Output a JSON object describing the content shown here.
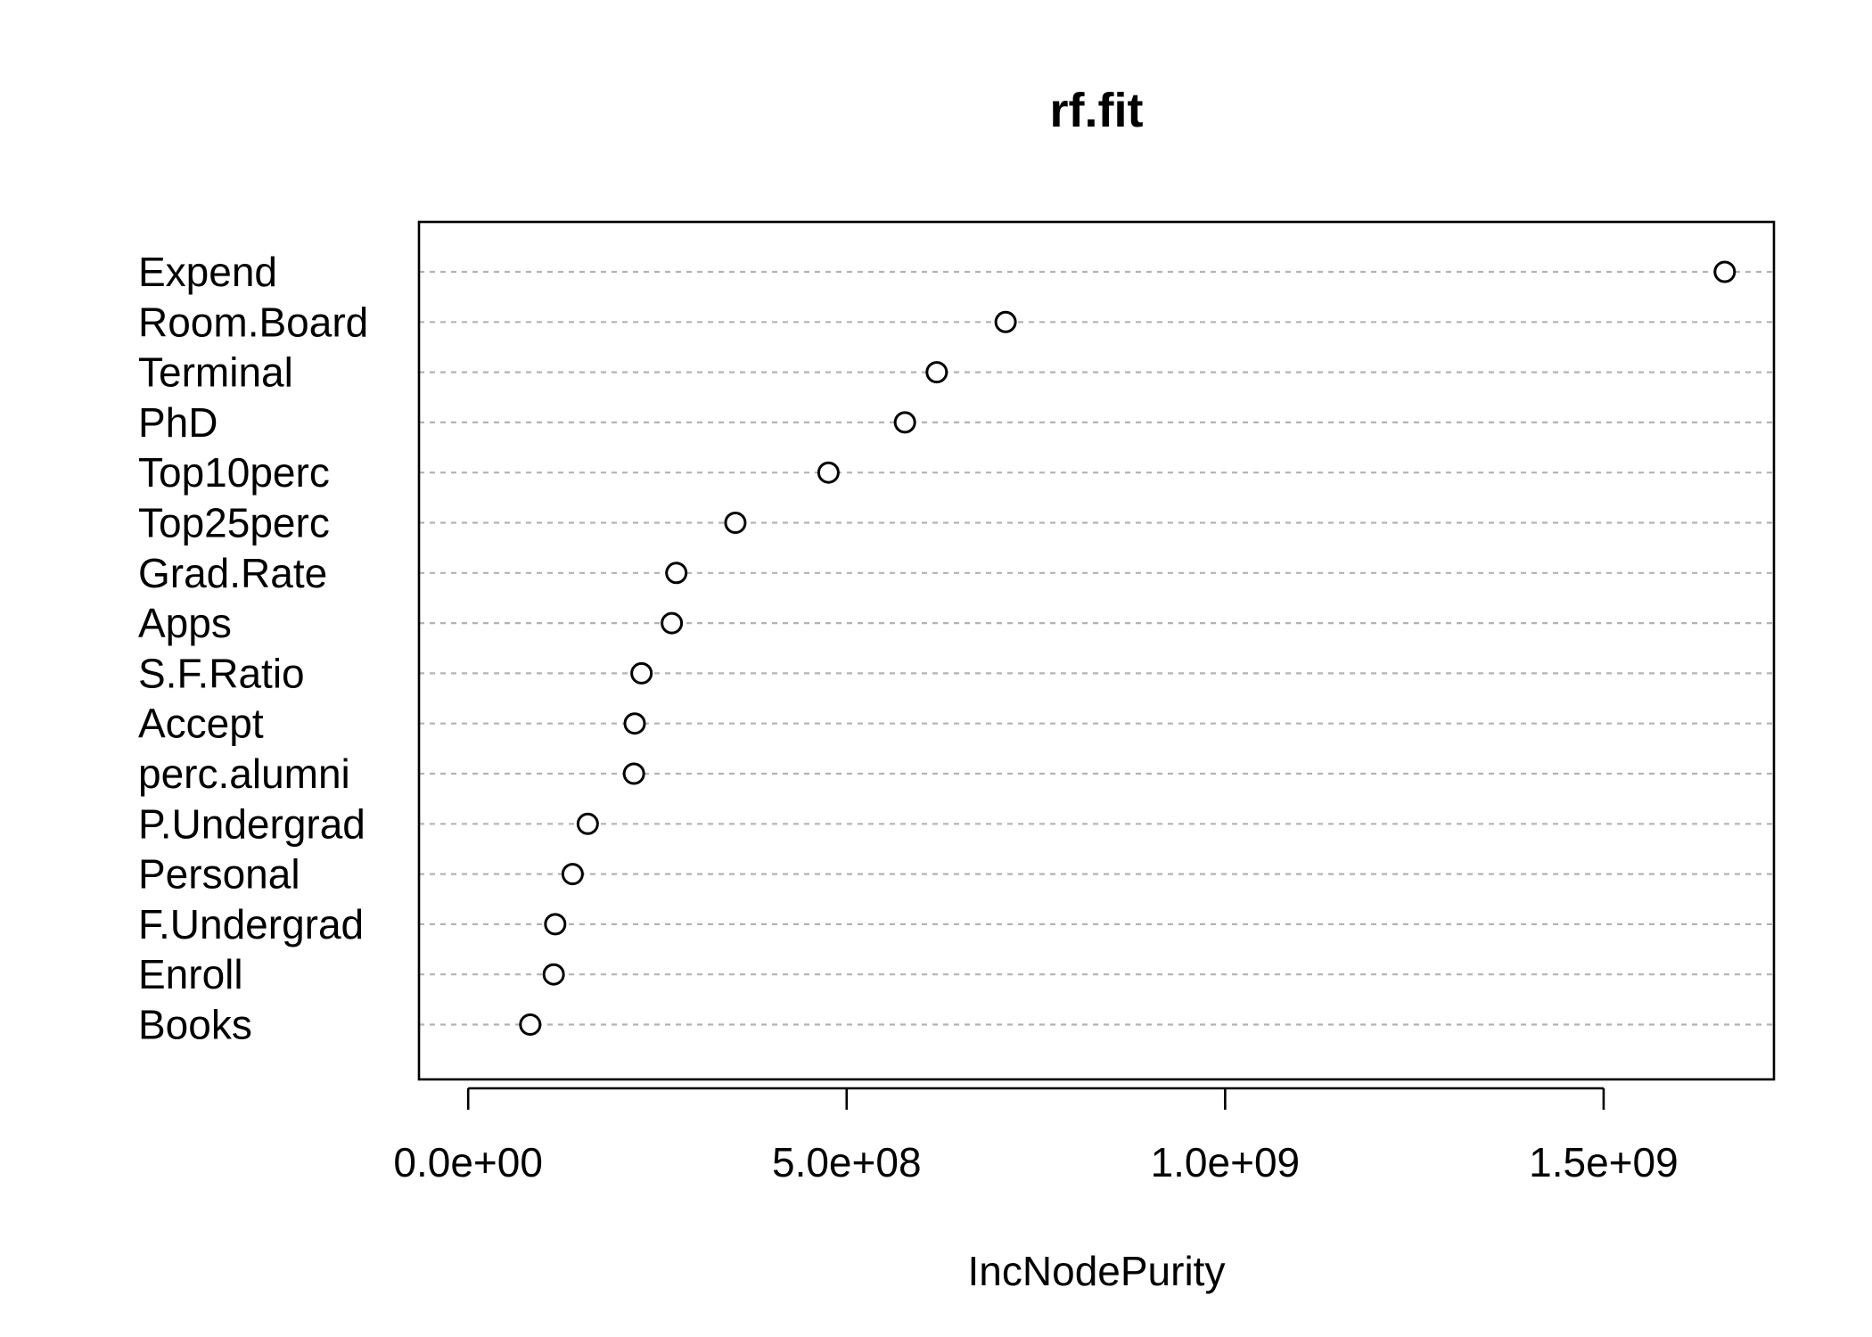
{
  "chart_data": {
    "type": "scatter",
    "title": "rf.fit",
    "xlabel": "IncNodePurity",
    "ylabel": "",
    "xlim": [
      -65000000,
      1725000000
    ],
    "xticks": [
      0,
      500000000,
      1000000000,
      1500000000
    ],
    "xtick_labels": [
      "0.0e+00",
      "5.0e+08",
      "1.0e+09",
      "1.5e+09"
    ],
    "grid": "dashed horizontal lines per variable",
    "point_color": "#000000",
    "grid_color": "#b3b3b3",
    "categories": [
      "Expend",
      "Room.Board",
      "Terminal",
      "PhD",
      "Top10perc",
      "Top25perc",
      "Grad.Rate",
      "Apps",
      "S.F.Ratio",
      "Accept",
      "perc.alumni",
      "P.Undergrad",
      "Personal",
      "F.Undergrad",
      "Enroll",
      "Books"
    ],
    "values": [
      1660000000,
      710000000,
      619000000,
      577000000,
      476000000,
      353000000,
      275000000,
      269000000,
      229000000,
      220000000,
      219000000,
      158000000,
      138000000,
      115000000,
      113000000,
      82000000
    ]
  }
}
